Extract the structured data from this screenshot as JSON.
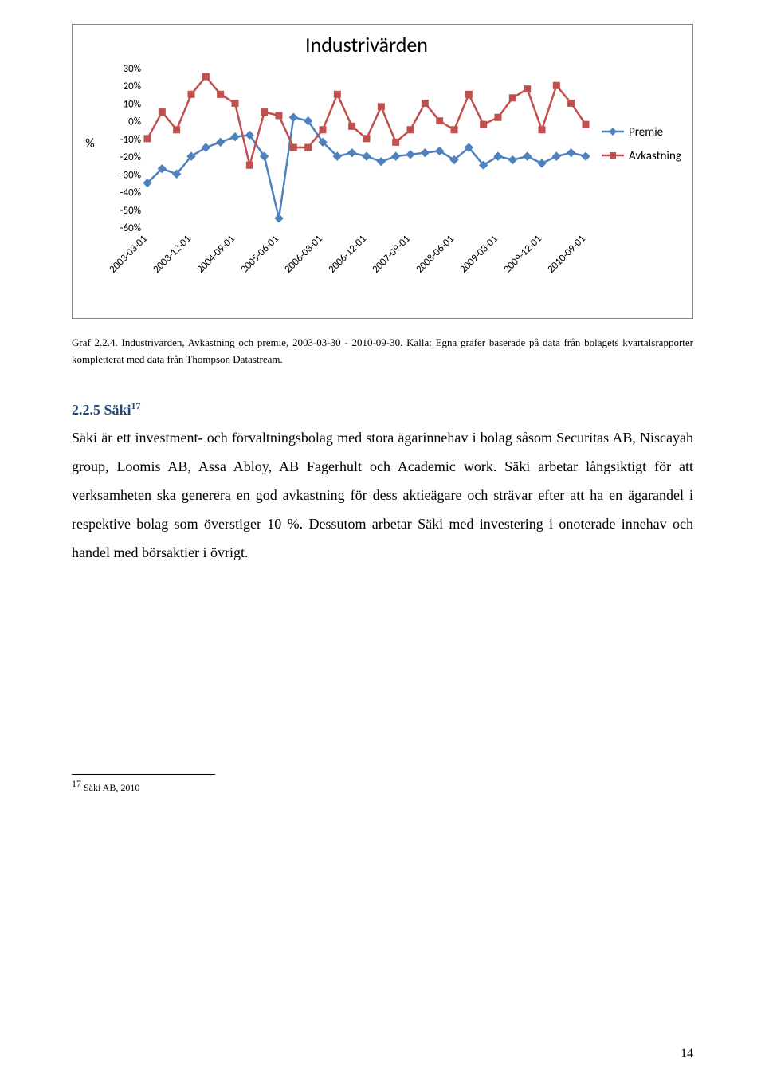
{
  "chart": {
    "type": "line",
    "title": "Industrivärden",
    "title_fontsize": 26,
    "title_color": "#000000",
    "y_axis_label": "%",
    "y_axis_label_fontsize": 16,
    "ylim": [
      -60,
      30
    ],
    "ytick_step": 10,
    "yticks": [
      "30%",
      "20%",
      "10%",
      "0%",
      "-10%",
      "-20%",
      "-30%",
      "-40%",
      "-50%",
      "-60%"
    ],
    "xticks": [
      "2003-03-01",
      "2003-12-01",
      "2004-09-01",
      "2005-06-01",
      "2006-03-01",
      "2006-12-01",
      "2007-09-01",
      "2008-06-01",
      "2009-03-01",
      "2009-12-01",
      "2010-09-01"
    ],
    "tick_fontsize": 13,
    "background_color": "#ffffff",
    "plot_border_color": "#888888",
    "grid": false,
    "legend": {
      "position": "right",
      "items": [
        {
          "label": "Premie",
          "color": "#4f81bd",
          "marker": "diamond"
        },
        {
          "label": "Avkastning",
          "color": "#c0504d",
          "marker": "square"
        }
      ],
      "fontsize": 15
    },
    "line_width": 2.5,
    "marker_size": 5,
    "series": [
      {
        "name": "Premie",
        "color": "#4f81bd",
        "marker": "diamond",
        "values": [
          -35,
          -27,
          -30,
          -20,
          -15,
          -12,
          -9,
          -8,
          -20,
          -55,
          2,
          0,
          -12,
          -20,
          -18,
          -20,
          -23,
          -20,
          -19,
          -18,
          -17,
          -22,
          -15,
          -25,
          -20,
          -22,
          -20,
          -24,
          -20,
          -18,
          -20
        ]
      },
      {
        "name": "Avkastning",
        "color": "#c0504d",
        "marker": "square",
        "values": [
          -10,
          5,
          -5,
          15,
          25,
          15,
          10,
          -25,
          5,
          3,
          -15,
          -15,
          -5,
          15,
          -3,
          -10,
          8,
          -12,
          -5,
          10,
          0,
          -5,
          15,
          -2,
          2,
          13,
          18,
          -5,
          20,
          10,
          -2
        ]
      }
    ]
  },
  "caption": {
    "line1_prefix": "Graf 2.2.4.",
    "line1_rest": " Industrivärden, Avkastning och premie, 2003-03-30 - 2010-09-30. Källa: Egna grafer baserade på data från bolagets kvartalsrapporter kompletterat med data från Thompson Datastream."
  },
  "section": {
    "number": "2.2.5 ",
    "title": "Säki",
    "sup": "17"
  },
  "body": "Säki är ett investment- och förvaltningsbolag med stora ägarinnehav i bolag såsom Securitas AB, Niscayah group, Loomis AB, Assa Abloy, AB Fagerhult och Academic work. Säki arbetar långsiktigt för att verksamheten ska generera en god avkastning för dess aktieägare och strävar efter att ha en ägarandel i respektive bolag som överstiger 10 %. Dessutom arbetar Säki med investering i onoterade innehav och handel med börsaktier i övrigt.",
  "footnote": {
    "num": "17",
    "text": " Säki AB, 2010"
  },
  "page_number": "14"
}
